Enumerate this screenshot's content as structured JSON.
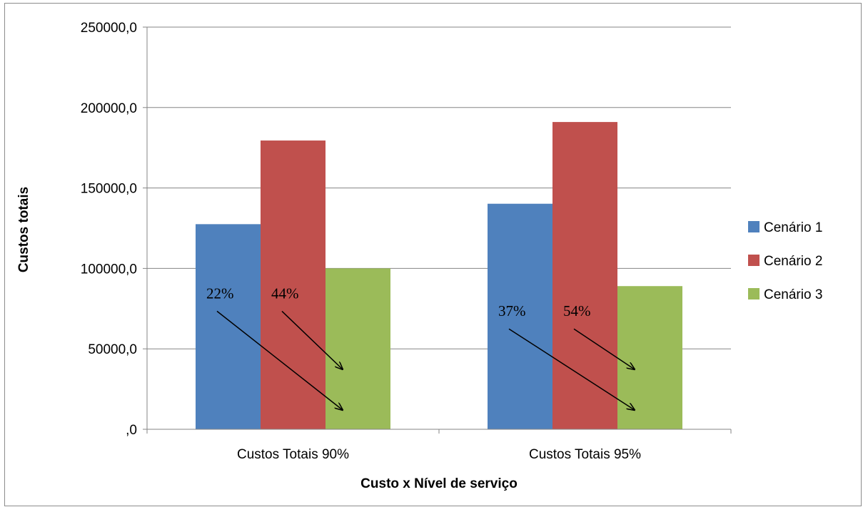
{
  "chart_data": {
    "type": "bar",
    "title": "",
    "xlabel": "Custo x Nível de serviço",
    "ylabel": "Custos totais",
    "categories": [
      "Custos Totais 90%",
      "Custos Totais 95%"
    ],
    "series": [
      {
        "name": "Cenário 1",
        "color": "#4f81bd",
        "values": [
          127500,
          140200
        ]
      },
      {
        "name": "Cenário 2",
        "color": "#c0504d",
        "values": [
          179500,
          191000
        ]
      },
      {
        "name": "Cenário 3",
        "color": "#9bbb59",
        "values": [
          100000,
          89000
        ]
      }
    ],
    "ylim": [
      0,
      250000
    ],
    "yticks": [
      0,
      50000,
      100000,
      150000,
      200000,
      250000
    ],
    "ytick_labels": [
      ",0",
      "50000,0",
      "100000,0",
      "150000,0",
      "200000,0",
      "250000,0"
    ],
    "grid": true,
    "legend_position": "right",
    "annotations": [
      {
        "text": "22%",
        "category": 0,
        "from_series": 0,
        "to_series": 2
      },
      {
        "text": "44%",
        "category": 0,
        "from_series": 1,
        "to_series": 2
      },
      {
        "text": "37%",
        "category": 1,
        "from_series": 0,
        "to_series": 2
      },
      {
        "text": "54%",
        "category": 1,
        "from_series": 1,
        "to_series": 2
      }
    ]
  }
}
